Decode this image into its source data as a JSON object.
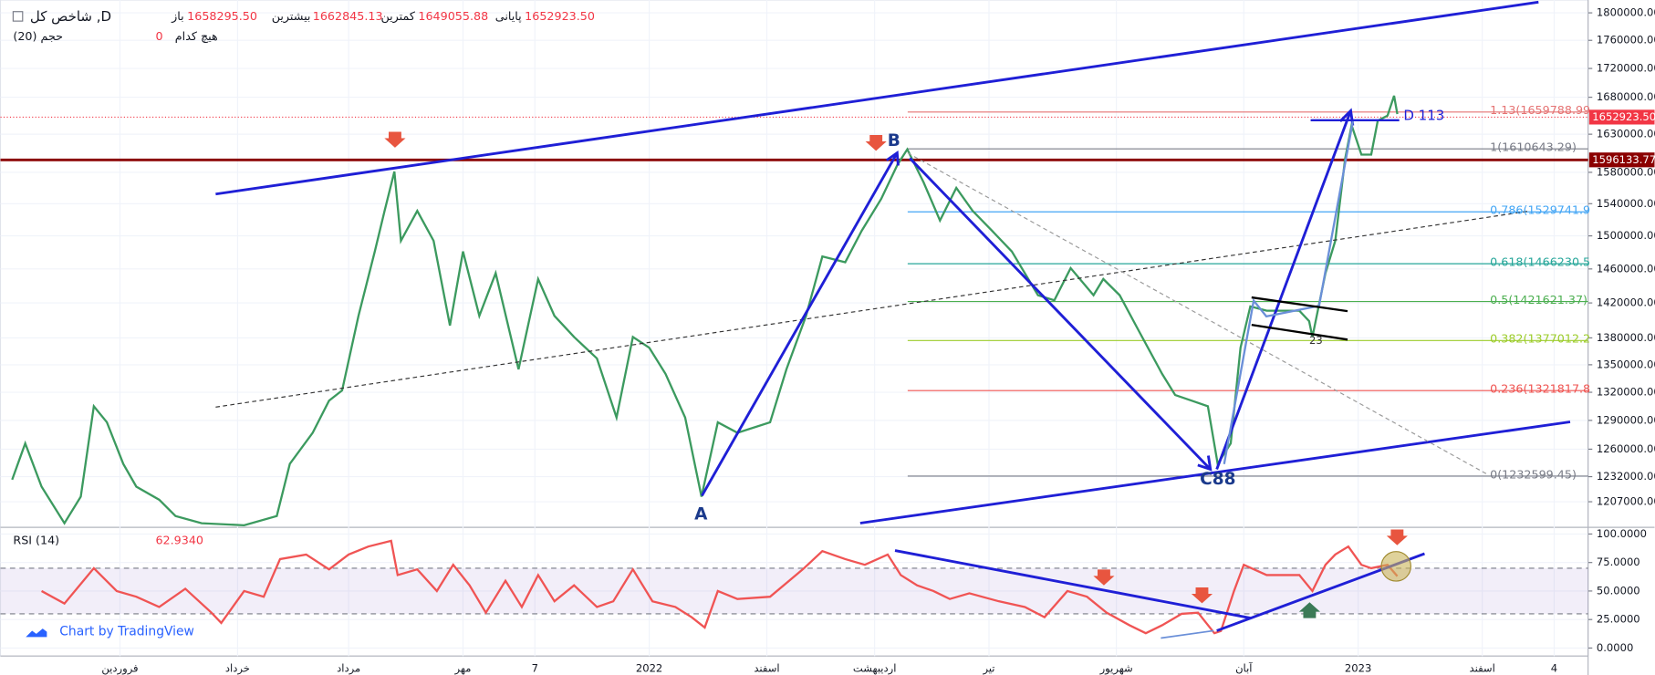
{
  "header": {
    "symbol": "شاخص کل ,D",
    "open_label": "باز",
    "open": "1658295.50",
    "high_label": "بیشترین",
    "high": "1662845.13",
    "low_label": "کمترین",
    "low": "1649055.88",
    "close_label": "پایانی",
    "close": "1652923.50",
    "volume_label": "حجم (20)",
    "volume_value": "0",
    "volume_none": "هیچ کدام",
    "rsi_label": "RSI (14)",
    "rsi_value": "62.9340",
    "brand": "Chart by TradingView"
  },
  "annotations": {
    "a": "A",
    "b": "B",
    "c": "C88",
    "d": "D 113",
    "n23": "23"
  },
  "chart_data": [
    {
      "type": "line",
      "log_scale": true,
      "xlim": [
        0,
        485
      ],
      "ylim": [
        1182000,
        1819000
      ],
      "xticks": [
        {
          "value": 34,
          "label": "فروردین"
        },
        {
          "value": 70,
          "label": "خرداد"
        },
        {
          "value": 104,
          "label": "مرداد"
        },
        {
          "value": 139,
          "label": "مهر"
        },
        {
          "value": 161,
          "label": "7"
        },
        {
          "value": 196,
          "label": "2022"
        },
        {
          "value": 232,
          "label": "اسفند"
        },
        {
          "value": 265,
          "label": "اردیبهشت"
        },
        {
          "value": 300,
          "label": "تیر"
        },
        {
          "value": 339,
          "label": "شهریور"
        },
        {
          "value": 378,
          "label": "آبان"
        },
        {
          "value": 413,
          "label": "2023"
        },
        {
          "value": 451,
          "label": "اسفند"
        },
        {
          "value": 473,
          "label": "4"
        }
      ],
      "yticks": [
        {
          "value": 1800000,
          "label": "1800000.00"
        },
        {
          "value": 1760000,
          "label": "1760000.00"
        },
        {
          "value": 1720000,
          "label": "1720000.00"
        },
        {
          "value": 1680000,
          "label": "1680000.00"
        },
        {
          "value": 1630000,
          "label": "1630000.00"
        },
        {
          "value": 1580000,
          "label": "1580000.00"
        },
        {
          "value": 1540000,
          "label": "1540000.00"
        },
        {
          "value": 1500000,
          "label": "1500000.00"
        },
        {
          "value": 1460000,
          "label": "1460000.00"
        },
        {
          "value": 1420000,
          "label": "1420000.00"
        },
        {
          "value": 1380000,
          "label": "1380000.00"
        },
        {
          "value": 1350000,
          "label": "1350000.00"
        },
        {
          "value": 1320000,
          "label": "1320000.00"
        },
        {
          "value": 1290000,
          "label": "1290000.00"
        },
        {
          "value": 1260000,
          "label": "1260000.00"
        },
        {
          "value": 1232000,
          "label": "1232000.00"
        },
        {
          "value": 1207000,
          "label": "1207000.00"
        }
      ],
      "series": [
        {
          "name": "شاخص کل",
          "color": "#3c9a5f",
          "x": [
            1,
            5,
            10,
            17,
            22,
            26,
            30,
            35,
            39,
            46,
            51,
            59,
            72,
            82,
            86,
            93,
            98,
            102,
            107,
            112,
            115,
            118,
            120,
            125,
            130,
            135,
            139,
            144,
            149,
            156,
            162,
            167,
            173,
            180,
            186,
            191,
            196,
            201,
            207,
            212,
            217,
            223,
            233,
            238,
            244,
            249,
            256,
            261,
            267,
            272,
            275,
            280,
            285,
            290,
            295,
            301,
            307,
            315,
            320,
            325,
            332,
            335,
            340,
            346,
            353,
            357,
            362,
            367,
            370,
            374,
            377,
            380,
            385,
            390,
            395,
            398,
            399,
            403,
            406,
            409,
            411,
            414,
            417,
            419,
            422,
            424,
            425
          ],
          "values": [
            1229000,
            1266000,
            1222000,
            1186000,
            1212000,
            1305000,
            1288000,
            1245000,
            1222000,
            1209000,
            1193000,
            1186000,
            1184000,
            1193000,
            1245000,
            1277000,
            1311000,
            1322000,
            1405000,
            1481000,
            1531000,
            1581000,
            1494000,
            1531000,
            1494000,
            1394000,
            1481000,
            1405000,
            1455000,
            1345000,
            1448000,
            1405000,
            1381000,
            1357000,
            1293000,
            1381000,
            1369000,
            1340000,
            1293000,
            1212000,
            1288000,
            1277000,
            1288000,
            1345000,
            1405000,
            1475000,
            1468000,
            1506000,
            1546000,
            1590000,
            1610000,
            1567000,
            1519000,
            1560000,
            1531000,
            1506000,
            1481000,
            1429000,
            1423000,
            1461000,
            1429000,
            1448000,
            1429000,
            1387000,
            1340000,
            1317000,
            1311000,
            1305000,
            1245000,
            1266000,
            1369000,
            1416000,
            1411000,
            1411000,
            1411000,
            1399000,
            1381000,
            1455000,
            1494000,
            1597000,
            1642000,
            1603000,
            1603000,
            1648000,
            1655000,
            1682000,
            1657000
          ]
        }
      ],
      "price_lines": [
        {
          "value": 1652923.5,
          "label": "1652923.50",
          "color": "#f23645"
        },
        {
          "value": 1596133.77,
          "label": "1596133.77",
          "color": "#8b0000"
        }
      ],
      "fib_levels": [
        {
          "value": 1659788.99,
          "label": "1.13(1659788.99",
          "color": "#e57373"
        },
        {
          "value": 1610643.29,
          "label": "1(1610643.29)",
          "color": "#787b86"
        },
        {
          "value": 1529741.9,
          "label": "0.786(1529741.9",
          "color": "#42a5f5"
        },
        {
          "value": 1466230.5,
          "label": "0.618(1466230.5",
          "color": "#26a69a"
        },
        {
          "value": 1421621.37,
          "label": "0.5(1421621.37)",
          "color": "#4caf50"
        },
        {
          "value": 1377012.2,
          "label": "0.382(1377012.2",
          "color": "#9ccc2a"
        },
        {
          "value": 1321817.8,
          "label": "0.236(1321817.8",
          "color": "#ef5350"
        },
        {
          "value": 1232599.45,
          "label": "0(1232599.45)",
          "color": "#787b86"
        }
      ]
    },
    {
      "type": "line",
      "xlim": [
        0,
        485
      ],
      "ylim": [
        -7,
        104
      ],
      "yticks": [
        {
          "value": 100,
          "label": "100.0000"
        },
        {
          "value": 75,
          "label": "75.0000"
        },
        {
          "value": 50,
          "label": "50.0000"
        },
        {
          "value": 25,
          "label": "25.0000"
        },
        {
          "value": 0,
          "label": "0.0000"
        }
      ],
      "bands": [
        70,
        30
      ],
      "series": [
        {
          "name": "RSI (14)",
          "color": "#f05454",
          "x": [
            10,
            17,
            26,
            33,
            39,
            46,
            54,
            62,
            65,
            72,
            78,
            83,
            91,
            98,
            104,
            110,
            117,
            119,
            125,
            131,
            136,
            141,
            146,
            152,
            157,
            162,
            167,
            173,
            180,
            185,
            191,
            197,
            204,
            209,
            213,
            217,
            223,
            233,
            243,
            249,
            256,
            262,
            269,
            273,
            278,
            283,
            288,
            294,
            303,
            311,
            317,
            324,
            330,
            336,
            343,
            348,
            353,
            359,
            364,
            369,
            371,
            375,
            378,
            385,
            390,
            395,
            399,
            403,
            406,
            410,
            414,
            417,
            422,
            425
          ],
          "values": [
            50,
            39,
            70,
            50,
            45,
            36,
            52,
            31,
            22,
            50,
            45,
            78,
            82,
            69,
            82,
            89,
            94,
            64,
            69,
            50,
            73,
            55,
            31,
            59,
            36,
            64,
            41,
            55,
            36,
            41,
            69,
            41,
            36,
            27,
            18,
            50,
            43,
            45,
            69,
            85,
            78,
            73,
            82,
            64,
            55,
            50,
            43,
            48,
            41,
            36,
            27,
            50,
            45,
            31,
            20,
            13,
            20,
            30,
            31,
            13,
            15,
            50,
            73,
            64,
            64,
            64,
            50,
            73,
            82,
            89,
            73,
            70,
            73,
            63
          ]
        }
      ]
    }
  ]
}
